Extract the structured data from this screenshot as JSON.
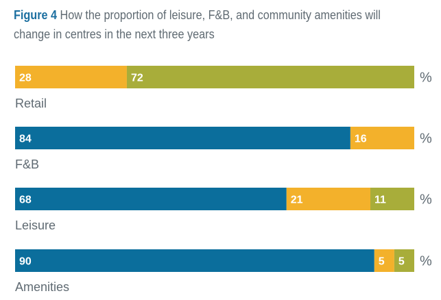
{
  "title": {
    "label": "Figure 4",
    "text": " How the proportion of leisure, F&B, and community amenities will change in centres in the next three years"
  },
  "colors": {
    "increase": "#0b6e9c",
    "same": "#f3b12b",
    "decrease": "#a8ad3a"
  },
  "chart_data": {
    "type": "bar",
    "orientation": "horizontal",
    "stacked": true,
    "unit": "%",
    "categories": [
      "Retail",
      "F&B",
      "Leisure",
      "Amenities"
    ],
    "series": [
      {
        "values": [
          0,
          84,
          68,
          90
        ]
      },
      {
        "values": [
          28,
          16,
          21,
          5
        ]
      },
      {
        "values": [
          72,
          0,
          11,
          5
        ]
      }
    ],
    "xlim": [
      0,
      100
    ],
    "grid": false,
    "legend": "none"
  }
}
